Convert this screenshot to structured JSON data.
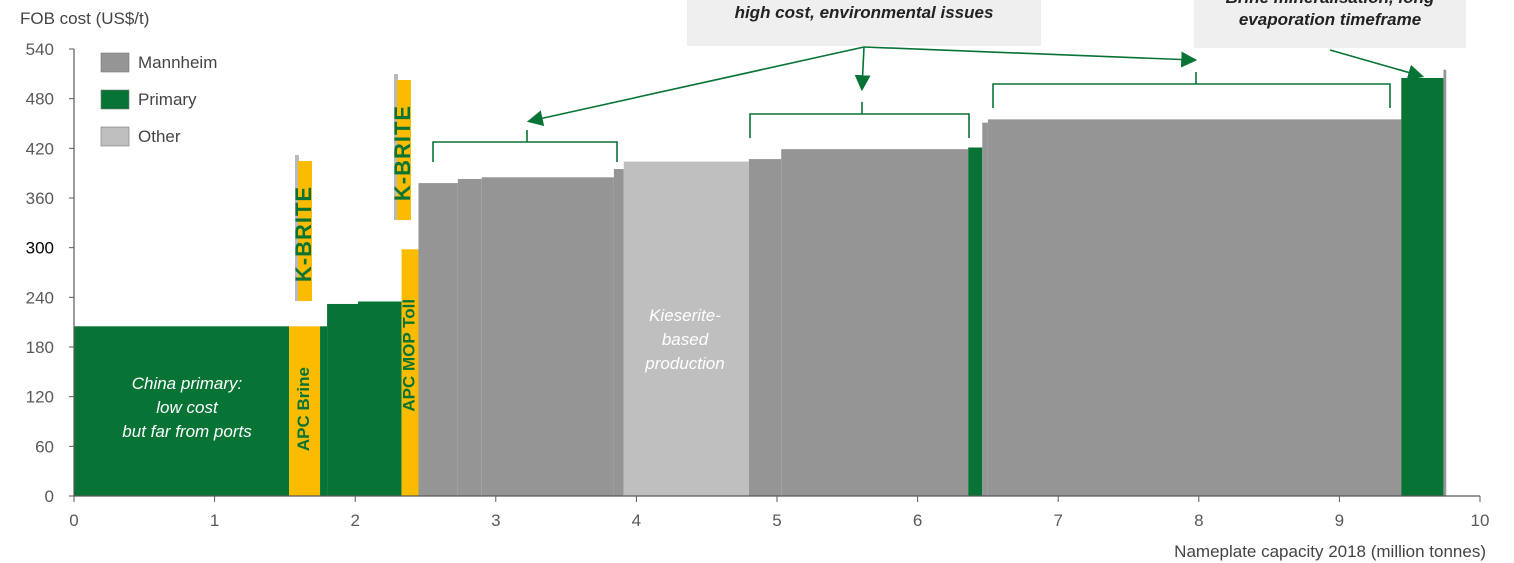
{
  "chart_data": {
    "type": "bar",
    "subtype": "cost-curve",
    "ylabel": "FOB cost (US$/t)",
    "xlabel": "Nameplate capacity 2018 (million tonnes)",
    "xlim": [
      0,
      10
    ],
    "ylim": [
      0,
      540
    ],
    "xticks": [
      "0",
      "1",
      "2",
      "3",
      "4",
      "5",
      "6",
      "7",
      "8",
      "9",
      "10"
    ],
    "yticks": [
      "0",
      "60",
      "120",
      "180",
      "240",
      "300",
      "360",
      "420",
      "480",
      "540"
    ],
    "legend": {
      "position": "top-left",
      "items": [
        {
          "name": "Mannheim",
          "color": "#959595"
        },
        {
          "name": "Primary",
          "color": "#077435"
        },
        {
          "name": "Other",
          "color": "#bfbfbf"
        }
      ]
    },
    "colors": {
      "Mannheim": "#959595",
      "Primary": "#077435",
      "Other": "#bfbfbf",
      "APC": "#fbbc00",
      "annotation": "#077435"
    },
    "segments": [
      {
        "category": "Primary",
        "x0": 0.0,
        "x1": 1.53,
        "value": 205
      },
      {
        "category": "APC",
        "x0": 1.53,
        "x1": 1.75,
        "value": 205,
        "label": "APC Brine"
      },
      {
        "category": "Primary",
        "x0": 1.75,
        "x1": 1.8,
        "value": 205
      },
      {
        "category": "Primary",
        "x0": 1.8,
        "x1": 2.02,
        "value": 232
      },
      {
        "category": "Primary",
        "x0": 2.02,
        "x1": 2.33,
        "value": 235
      },
      {
        "category": "APC",
        "x0": 2.33,
        "x1": 2.45,
        "value": 298,
        "label": "APC MOP Toll"
      },
      {
        "category": "Mannheim",
        "x0": 2.45,
        "x1": 2.73,
        "value": 378
      },
      {
        "category": "Mannheim",
        "x0": 2.73,
        "x1": 2.9,
        "value": 383
      },
      {
        "category": "Mannheim",
        "x0": 2.9,
        "x1": 3.84,
        "value": 385
      },
      {
        "category": "Mannheim",
        "x0": 3.84,
        "x1": 3.91,
        "value": 395
      },
      {
        "category": "Other",
        "x0": 3.91,
        "x1": 4.8,
        "value": 404
      },
      {
        "category": "Mannheim",
        "x0": 4.8,
        "x1": 5.03,
        "value": 407
      },
      {
        "category": "Mannheim",
        "x0": 5.03,
        "x1": 6.36,
        "value": 419
      },
      {
        "category": "Primary",
        "x0": 6.36,
        "x1": 6.46,
        "value": 421
      },
      {
        "category": "Mannheim",
        "x0": 6.46,
        "x1": 6.5,
        "value": 451
      },
      {
        "category": "Mannheim",
        "x0": 6.5,
        "x1": 9.44,
        "value": 455
      },
      {
        "category": "Primary",
        "x0": 9.44,
        "x1": 9.74,
        "value": 505
      },
      {
        "category": "Mannheim",
        "x0": 9.74,
        "x1": 9.76,
        "value": 515
      }
    ],
    "annotations": [
      {
        "text": "China primary:\nlow cost\nbut far from ports"
      },
      {
        "text": "Kieserite-\nbased\nproduction"
      },
      {
        "text": "…quality, high energy,\nhigh cost, environmental issues"
      },
      {
        "text": "Brine mineralisation, long\nevaporation timeframe"
      }
    ],
    "logos": [
      {
        "text": "K-BRITE"
      },
      {
        "text": "K-BRITE"
      }
    ]
  }
}
